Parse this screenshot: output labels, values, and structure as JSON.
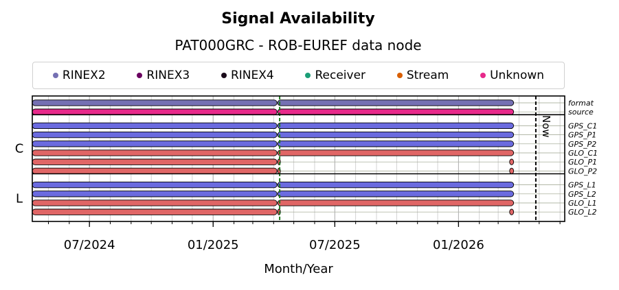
{
  "chart_data": {
    "type": "timeline",
    "title": "Signal Availability",
    "subtitle": "PAT000GRC - ROB-EUREF data node",
    "xlabel": "Month/Year",
    "x_tick_labels": [
      "07/2024",
      "01/2025",
      "07/2025",
      "01/2026"
    ],
    "x_ticks": [
      "2024-07-01",
      "2025-01-01",
      "2025-07-01",
      "2026-01-01"
    ],
    "xlim": [
      "2024-04-07",
      "2026-06-08"
    ],
    "grid": true,
    "legend": {
      "placement": "top",
      "items": [
        {
          "label": "RINEX2",
          "color": "#7570b3"
        },
        {
          "label": "RINEX3",
          "color": "#6a0060"
        },
        {
          "label": "RINEX4",
          "color": "#1a0a1a"
        },
        {
          "label": "Receiver",
          "color": "#1b9e77"
        },
        {
          "label": "Stream",
          "color": "#d95f02"
        },
        {
          "label": "Unknown",
          "color": "#e7298a"
        }
      ]
    },
    "markers": [
      {
        "date": "2025-04-10",
        "color": "#1f7a1f",
        "style": "dashed",
        "label": ""
      },
      {
        "date": "2026-04-26",
        "color": "#000000",
        "style": "dashed",
        "label": "Now"
      }
    ],
    "groups": [
      {
        "label": "",
        "rows": [
          {
            "name": "format",
            "color": "#7570b3",
            "segments": [
              [
                "2024-04-07",
                "2025-04-06"
              ],
              [
                "2025-04-07",
                "2026-03-24"
              ]
            ]
          },
          {
            "name": "source",
            "color": "#e7298a",
            "segments": [
              [
                "2024-04-07",
                "2025-04-06"
              ],
              [
                "2025-04-07",
                "2026-03-24"
              ]
            ]
          }
        ]
      },
      {
        "label": "C",
        "rows": [
          {
            "name": "GPS_C1",
            "color": "#6b6bdf",
            "segments": [
              [
                "2024-04-07",
                "2025-04-06"
              ],
              [
                "2025-04-07",
                "2026-03-24"
              ]
            ]
          },
          {
            "name": "GPS_P1",
            "color": "#6b6bdf",
            "segments": [
              [
                "2024-04-07",
                "2025-04-06"
              ],
              [
                "2025-04-07",
                "2026-03-24"
              ]
            ]
          },
          {
            "name": "GPS_P2",
            "color": "#6b6bdf",
            "segments": [
              [
                "2024-04-07",
                "2025-04-06"
              ],
              [
                "2025-04-07",
                "2026-03-24"
              ]
            ]
          },
          {
            "name": "GLO_C1",
            "color": "#e06666",
            "segments": [
              [
                "2024-04-07",
                "2025-04-06"
              ],
              [
                "2025-04-07",
                "2026-03-24"
              ]
            ]
          },
          {
            "name": "GLO_P1",
            "color": "#e06666",
            "segments": [
              [
                "2024-04-07",
                "2025-04-06"
              ],
              [
                "2025-04-07",
                "2025-04-10"
              ],
              [
                "2026-03-18",
                "2026-03-24"
              ]
            ]
          },
          {
            "name": "GLO_P2",
            "color": "#e06666",
            "segments": [
              [
                "2024-04-07",
                "2025-04-06"
              ],
              [
                "2025-04-07",
                "2025-04-10"
              ],
              [
                "2026-03-18",
                "2026-03-24"
              ]
            ]
          }
        ]
      },
      {
        "label": "L",
        "rows": [
          {
            "name": "GPS_L1",
            "color": "#6b6bdf",
            "segments": [
              [
                "2024-04-07",
                "2025-04-06"
              ],
              [
                "2025-04-07",
                "2026-03-24"
              ]
            ]
          },
          {
            "name": "GPS_L2",
            "color": "#6b6bdf",
            "segments": [
              [
                "2024-04-07",
                "2025-04-06"
              ],
              [
                "2025-04-07",
                "2026-03-24"
              ]
            ]
          },
          {
            "name": "GLO_L1",
            "color": "#e06666",
            "segments": [
              [
                "2024-04-07",
                "2025-04-06"
              ],
              [
                "2025-04-07",
                "2026-03-24"
              ]
            ]
          },
          {
            "name": "GLO_L2",
            "color": "#e06666",
            "segments": [
              [
                "2024-04-07",
                "2025-04-06"
              ],
              [
                "2025-04-07",
                "2025-04-10"
              ],
              [
                "2026-03-18",
                "2026-03-24"
              ]
            ]
          }
        ]
      }
    ]
  }
}
